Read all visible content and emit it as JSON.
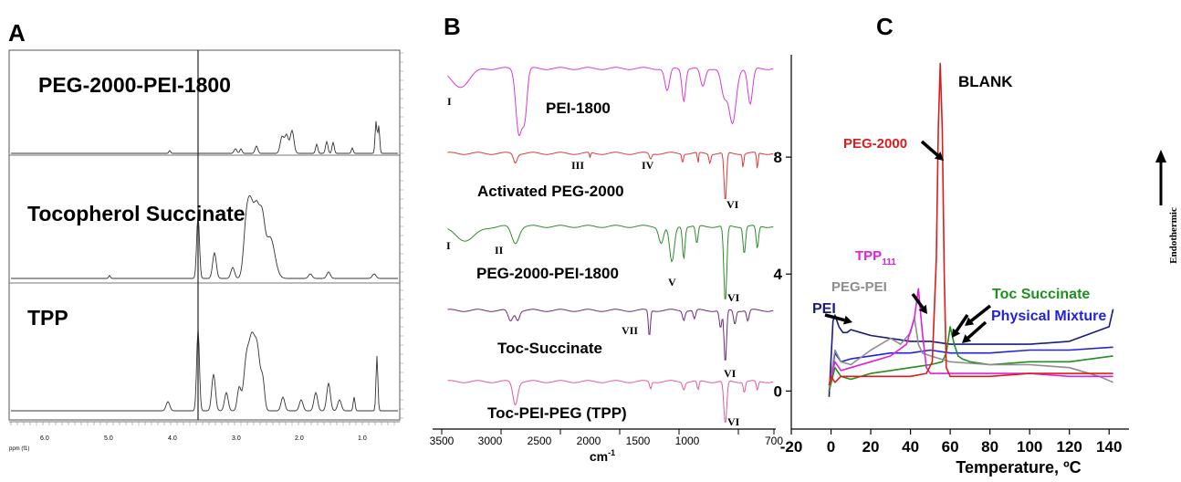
{
  "panel_labels": {
    "a": "A",
    "b": "B",
    "c": "C"
  },
  "panel_a": {
    "axis_label": "ppm (f1)",
    "ticks": [
      "6.0",
      "5.0",
      "4.0",
      "3.0",
      "2.0",
      "1.0"
    ],
    "spectra": [
      "PEG-2000-PEI-1800",
      "Tocopherol Succinate",
      "TPP"
    ]
  },
  "panel_b": {
    "xlabel": "cm",
    "xlabel_sup": "-1",
    "ticks": [
      "3500",
      "3000",
      "2500",
      "2000",
      "1500",
      "1000",
      "700"
    ],
    "spectra": [
      {
        "label": "PEI-1800",
        "color": "#d63ad6"
      },
      {
        "label": "Activated PEG-2000",
        "color": "#d93b3b"
      },
      {
        "label": "PEG-2000-PEI-1800",
        "color": "#2e8b2e"
      },
      {
        "label": "Toc-Succinate",
        "color": "#6b2b7a"
      },
      {
        "label": "Toc-PEI-PEG (TPP)",
        "color": "#e05aa0"
      }
    ],
    "band_labels": [
      "I",
      "III",
      "IV",
      "VI",
      "I",
      "II",
      "V",
      "VI",
      "VII",
      "VI",
      "VI"
    ]
  },
  "chart_data": {
    "type": "line",
    "title": "",
    "xlabel": "Temperature, ºC",
    "ylabel": "Endothermic",
    "xlim": [
      -20,
      150
    ],
    "ylim": [
      -1.3,
      11.5
    ],
    "x_ticks": [
      -20,
      0,
      20,
      40,
      60,
      80,
      100,
      120,
      140
    ],
    "y_ticks": [
      0,
      4,
      8
    ],
    "series": [
      {
        "name": "BLANK",
        "color": "#e01b1b",
        "x": [
          -1,
          0,
          2,
          5,
          10,
          20,
          30,
          40,
          48,
          51,
          53,
          54,
          55,
          56,
          57,
          58,
          60,
          70,
          80,
          100,
          120,
          142
        ],
        "y": [
          0.2,
          0.5,
          0.3,
          0.5,
          0.5,
          0.5,
          0.5,
          0.5,
          0.6,
          1.0,
          4.5,
          9.0,
          11.2,
          9.0,
          4.0,
          0.8,
          0.5,
          0.5,
          0.5,
          0.6,
          0.6,
          0.6
        ]
      },
      {
        "name": "PEG-2000",
        "color": "#e01b1b",
        "x": [],
        "y": []
      },
      {
        "name": "TPP",
        "color": "#e020e0",
        "x": [
          -1,
          2,
          5,
          10,
          20,
          30,
          38,
          42,
          44,
          46,
          48,
          50,
          60,
          80,
          100,
          120,
          142
        ],
        "y": [
          0.2,
          1.0,
          0.7,
          0.8,
          1.0,
          1.2,
          1.6,
          2.5,
          3.5,
          2.0,
          0.8,
          0.6,
          0.6,
          0.6,
          0.6,
          0.5,
          0.5
        ]
      },
      {
        "name": "PEG-PEI",
        "color": "#8e8e8e",
        "x": [
          -1,
          2,
          5,
          10,
          20,
          30,
          35,
          40,
          42,
          44,
          46,
          50,
          60,
          80,
          100,
          120,
          135,
          142
        ],
        "y": [
          0.1,
          1.4,
          1.0,
          0.9,
          1.4,
          1.8,
          1.6,
          2.0,
          2.5,
          1.6,
          1.3,
          1.2,
          1.0,
          0.9,
          0.9,
          0.8,
          0.5,
          0.3
        ]
      },
      {
        "name": "Toc Succinate",
        "color": "#1f8f1f",
        "x": [
          -1,
          2,
          5,
          10,
          20,
          30,
          40,
          50,
          56,
          58,
          60,
          62,
          64,
          66,
          70,
          80,
          100,
          120,
          142
        ],
        "y": [
          0.0,
          0.8,
          0.5,
          0.4,
          0.6,
          0.7,
          0.8,
          0.9,
          1.0,
          1.3,
          2.2,
          1.6,
          1.2,
          1.1,
          1.0,
          0.9,
          1.0,
          1.0,
          1.2
        ]
      },
      {
        "name": "Physical Mixture",
        "color": "#2222dd",
        "x": [
          -1,
          2,
          5,
          10,
          20,
          30,
          40,
          50,
          60,
          80,
          100,
          120,
          142
        ],
        "y": [
          0.0,
          1.3,
          1.0,
          1.1,
          1.2,
          1.3,
          1.3,
          1.4,
          1.3,
          1.3,
          1.4,
          1.4,
          1.5
        ]
      },
      {
        "name": "PEI",
        "color": "#1a1a80",
        "x": [
          -1,
          1,
          2,
          4,
          6,
          8,
          10,
          15,
          20,
          30,
          40,
          50,
          60,
          80,
          100,
          120,
          140,
          142
        ],
        "y": [
          -0.2,
          2.4,
          2.6,
          2.2,
          2.0,
          2.0,
          2.1,
          2.0,
          1.9,
          1.8,
          1.7,
          1.7,
          1.6,
          1.6,
          1.6,
          1.7,
          2.2,
          2.8
        ]
      }
    ],
    "labels": {
      "blank": "BLANK",
      "peg2000": "PEG-2000",
      "tpp": "TPP",
      "tpp_sub": "111",
      "pegpei": "PEG-PEI",
      "toc": "Toc Succinate",
      "phys": "Physical Mixture",
      "pei": "PEI"
    }
  }
}
